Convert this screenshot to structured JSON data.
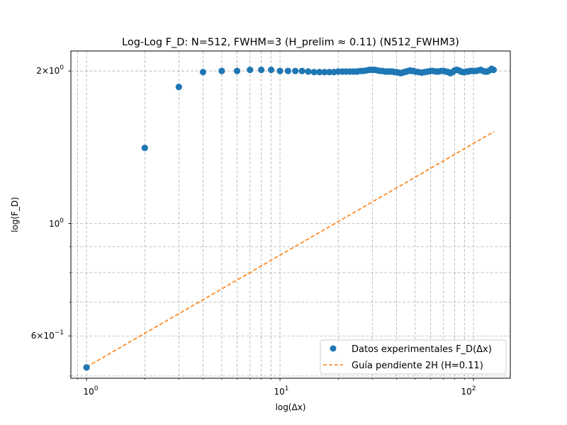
{
  "chart_data": {
    "type": "scatter",
    "title": "Log-Log F_D: N=512, FWHM=3 (H_prelim ≈ 0.11) (N512_FWHM3)",
    "xlabel": "log(Δx)",
    "ylabel": "log(F_D)",
    "xscale": "log",
    "yscale": "log",
    "xlim": [
      0.83,
      155
    ],
    "ylim": [
      0.495,
      2.19
    ],
    "grid": true,
    "legend_position": "lower-right",
    "x_tick_labels": [
      {
        "base": "10",
        "exp": "0"
      },
      {
        "base": "10",
        "exp": "1"
      },
      {
        "base": "10",
        "exp": "2"
      }
    ],
    "y_tick_labels": [
      {
        "mant": "6",
        "times": "×",
        "base": "10",
        "exp": "−1"
      },
      {
        "base": "10",
        "exp": "0"
      },
      {
        "mant": "2",
        "times": "×",
        "base": "10",
        "exp": "0"
      }
    ],
    "series": [
      {
        "name": "Datos experimentales F_D(Δx)",
        "style": "marker",
        "color": "#1f77b4",
        "points": [
          [
            1,
            0.52
          ],
          [
            2,
            1.41
          ],
          [
            3,
            1.86
          ],
          [
            4,
            1.99
          ],
          [
            5,
            2.0
          ],
          [
            6,
            2.0
          ],
          [
            7,
            2.01
          ],
          [
            8,
            2.01
          ],
          [
            9,
            2.01
          ],
          [
            10,
            2.0
          ],
          [
            11,
            2.0
          ],
          [
            12,
            2.0
          ],
          [
            13,
            2.0
          ],
          [
            14,
            1.995
          ],
          [
            15,
            1.99
          ],
          [
            16,
            1.99
          ],
          [
            17,
            1.99
          ],
          [
            18,
            1.99
          ],
          [
            19,
            1.99
          ],
          [
            20,
            1.995
          ],
          [
            21,
            1.995
          ],
          [
            22,
            1.995
          ],
          [
            23,
            1.995
          ],
          [
            24,
            1.995
          ],
          [
            25,
            1.995
          ],
          [
            26,
            2.0
          ],
          [
            27,
            2.0
          ],
          [
            28,
            2.005
          ],
          [
            29,
            2.01
          ],
          [
            30,
            2.01
          ],
          [
            31,
            2.01
          ],
          [
            32,
            2.005
          ],
          [
            33,
            2.0
          ],
          [
            34,
            2.0
          ],
          [
            35,
            1.995
          ],
          [
            36,
            1.995
          ],
          [
            37,
            1.995
          ],
          [
            38,
            1.995
          ],
          [
            39,
            1.99
          ],
          [
            40,
            1.99
          ],
          [
            41,
            1.985
          ],
          [
            42,
            1.98
          ],
          [
            43,
            1.985
          ],
          [
            44,
            1.99
          ],
          [
            45,
            1.995
          ],
          [
            46,
            2.0
          ],
          [
            47,
            2.005
          ],
          [
            48,
            2.0
          ],
          [
            49,
            2.0
          ],
          [
            50,
            1.995
          ],
          [
            52,
            1.99
          ],
          [
            54,
            1.985
          ],
          [
            56,
            1.99
          ],
          [
            58,
            1.995
          ],
          [
            60,
            2.0
          ],
          [
            62,
            2.0
          ],
          [
            64,
            1.995
          ],
          [
            66,
            1.995
          ],
          [
            68,
            2.0
          ],
          [
            70,
            2.0
          ],
          [
            72,
            1.995
          ],
          [
            74,
            1.99
          ],
          [
            76,
            1.98
          ],
          [
            78,
            1.99
          ],
          [
            80,
            2.005
          ],
          [
            82,
            2.01
          ],
          [
            84,
            2.005
          ],
          [
            86,
            1.995
          ],
          [
            88,
            1.99
          ],
          [
            90,
            1.99
          ],
          [
            92,
            1.995
          ],
          [
            94,
            1.995
          ],
          [
            96,
            2.0
          ],
          [
            98,
            2.0
          ],
          [
            100,
            2.0
          ],
          [
            103,
            2.0
          ],
          [
            106,
            2.005
          ],
          [
            109,
            2.01
          ],
          [
            112,
            2.0
          ],
          [
            115,
            1.995
          ],
          [
            118,
            1.995
          ],
          [
            121,
            2.005
          ],
          [
            124,
            2.02
          ],
          [
            127,
            2.01
          ]
        ]
      },
      {
        "name": "Guía pendiente 2H (H=0.11)",
        "style": "dashed-line",
        "color": "#ff7f0e",
        "points": [
          [
            1,
            0.521
          ],
          [
            128,
            1.519
          ]
        ]
      }
    ]
  }
}
